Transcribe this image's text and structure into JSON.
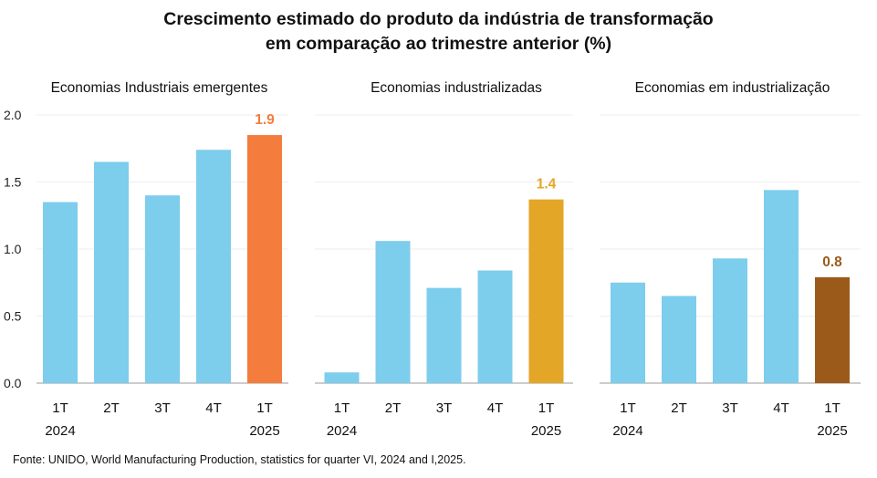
{
  "title_lines": [
    "Crescimento estimado do produto da indústria de transformação",
    "em comparação ao trimestre anterior (%)"
  ],
  "source": "Fonte: UNIDO, World Manufacturing Production, statistics for quarter VI, 2024 and I,2025.",
  "colors": {
    "default_bar": "#7dcdec",
    "highlight_0": "#f47c3c",
    "highlight_1": "#e3a626",
    "highlight_2": "#9c5a1a",
    "grid": "#eeeeee",
    "axis": "#999999"
  },
  "chart_data": [
    {
      "type": "bar",
      "title": "Economias Industriais emergentes",
      "categories": [
        [
          "1T",
          "2024"
        ],
        [
          "2T",
          ""
        ],
        [
          "3T",
          ""
        ],
        [
          "4T",
          ""
        ],
        [
          "1T",
          "2025"
        ]
      ],
      "values": [
        1.35,
        1.65,
        1.4,
        1.74,
        1.85
      ],
      "highlight_index": 4,
      "highlight_label": "1.9",
      "highlight_color": "#f47c3c",
      "yticks": [
        "0.0",
        "0.5",
        "1.0",
        "1.5",
        "2.0"
      ],
      "ylim": [
        0,
        2.0
      ],
      "grid": true
    },
    {
      "type": "bar",
      "title": "Economias industrializadas",
      "categories": [
        [
          "1T",
          "2024"
        ],
        [
          "2T",
          ""
        ],
        [
          "3T",
          ""
        ],
        [
          "4T",
          ""
        ],
        [
          "1T",
          "2025"
        ]
      ],
      "values": [
        0.08,
        1.06,
        0.71,
        0.84,
        1.37
      ],
      "highlight_index": 4,
      "highlight_label": "1.4",
      "highlight_color": "#e3a626",
      "ylim": [
        0,
        2.0
      ],
      "grid": true
    },
    {
      "type": "bar",
      "title": "Economias em industrialização",
      "categories": [
        [
          "1T",
          "2024"
        ],
        [
          "2T",
          ""
        ],
        [
          "3T",
          ""
        ],
        [
          "4T",
          ""
        ],
        [
          "1T",
          "2025"
        ]
      ],
      "values": [
        0.75,
        0.65,
        0.93,
        1.44,
        0.79
      ],
      "highlight_index": 4,
      "highlight_label": "0.8",
      "highlight_color": "#9c5a1a",
      "ylim": [
        0,
        2.0
      ],
      "grid": true
    }
  ]
}
